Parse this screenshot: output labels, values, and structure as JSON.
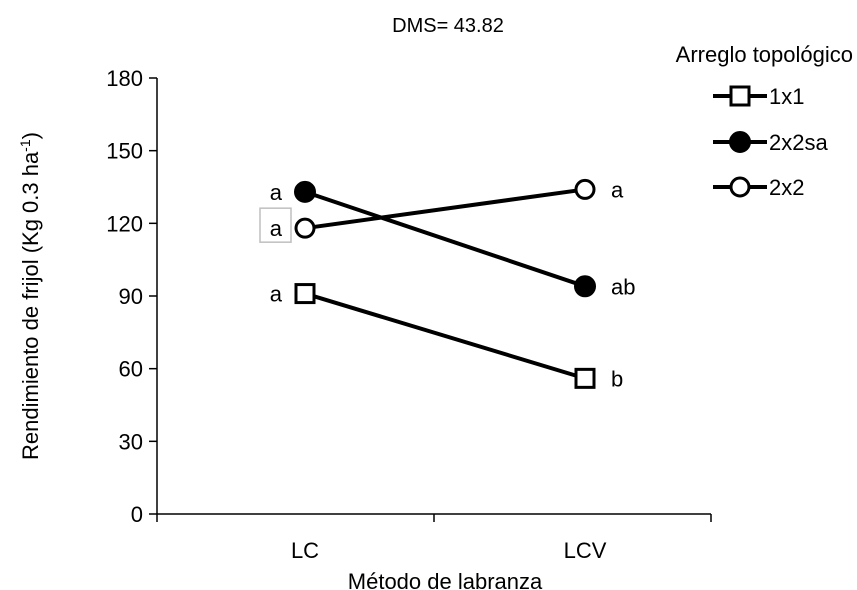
{
  "chart_data": {
    "type": "line",
    "subtitle": "DMS= 43.82",
    "xlabel": "Método de labranza",
    "ylabel": {
      "main": "Rendimiento de frijol (Kg 0.3 ha",
      "sup": "-1",
      "close": ")"
    },
    "categories": [
      "LC",
      "LCV"
    ],
    "ylim": [
      0,
      180
    ],
    "yticks": [
      "0",
      "30",
      "60",
      "90",
      "120",
      "150",
      "180"
    ],
    "legend": {
      "title": "Arreglo topológico",
      "placement": "top-right"
    },
    "series": [
      {
        "name": "1x1",
        "values": [
          91,
          56
        ],
        "marker": "square-open",
        "letters": [
          "a",
          "b"
        ],
        "letters_side": [
          "left",
          "right"
        ]
      },
      {
        "name": "2x2sa",
        "values": [
          133,
          94
        ],
        "marker": "circle-filled",
        "letters": [
          "a",
          "ab"
        ],
        "letters_side": [
          "left",
          "right"
        ]
      },
      {
        "name": "2x2",
        "values": [
          118,
          134
        ],
        "marker": "circle-open",
        "letters": [
          "a",
          "a"
        ],
        "letters_side": [
          "left",
          "right"
        ],
        "boxed_letter_index": 0
      }
    ],
    "grid": false,
    "colors": {
      "line": "#000000",
      "marker_fill_open": "#ffffff",
      "label_box": "#bfbfbf"
    }
  }
}
